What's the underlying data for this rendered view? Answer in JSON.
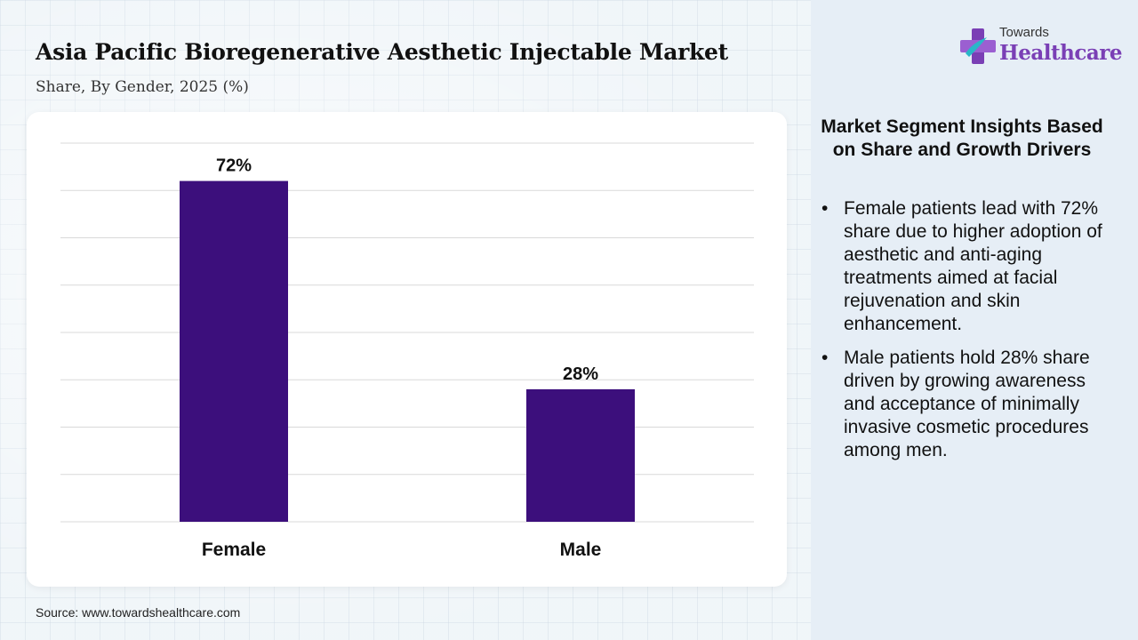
{
  "header": {
    "title": "Asia Pacific Bioregenerative Aesthetic Injectable Market",
    "subtitle": "Share, By Gender, 2025 (%)"
  },
  "chart_data": {
    "type": "bar",
    "categories": [
      "Female",
      "Male"
    ],
    "values": [
      72,
      28
    ],
    "value_labels": [
      "72%",
      "28%"
    ],
    "ylim": [
      0,
      80
    ],
    "grid": true,
    "bar_color": "#3c0f7c"
  },
  "sidebar": {
    "logo": {
      "small": "Towards",
      "big": "Healthcare"
    },
    "insights_title": "Market Segment Insights Based on Share and Growth Drivers",
    "bullets": [
      "Female patients lead with 72% share due to higher adoption of aesthetic and anti-aging treatments aimed at facial rejuvenation and skin enhancement.",
      "Male patients hold 28% share driven by growing awareness and acceptance of minimally invasive cosmetic procedures among men."
    ]
  },
  "footer": {
    "source": "Source: www.towardshealthcare.com"
  },
  "colors": {
    "accent": "#7a3fb5",
    "bars": "#3c0f7c",
    "panel": "#e6eef6"
  }
}
